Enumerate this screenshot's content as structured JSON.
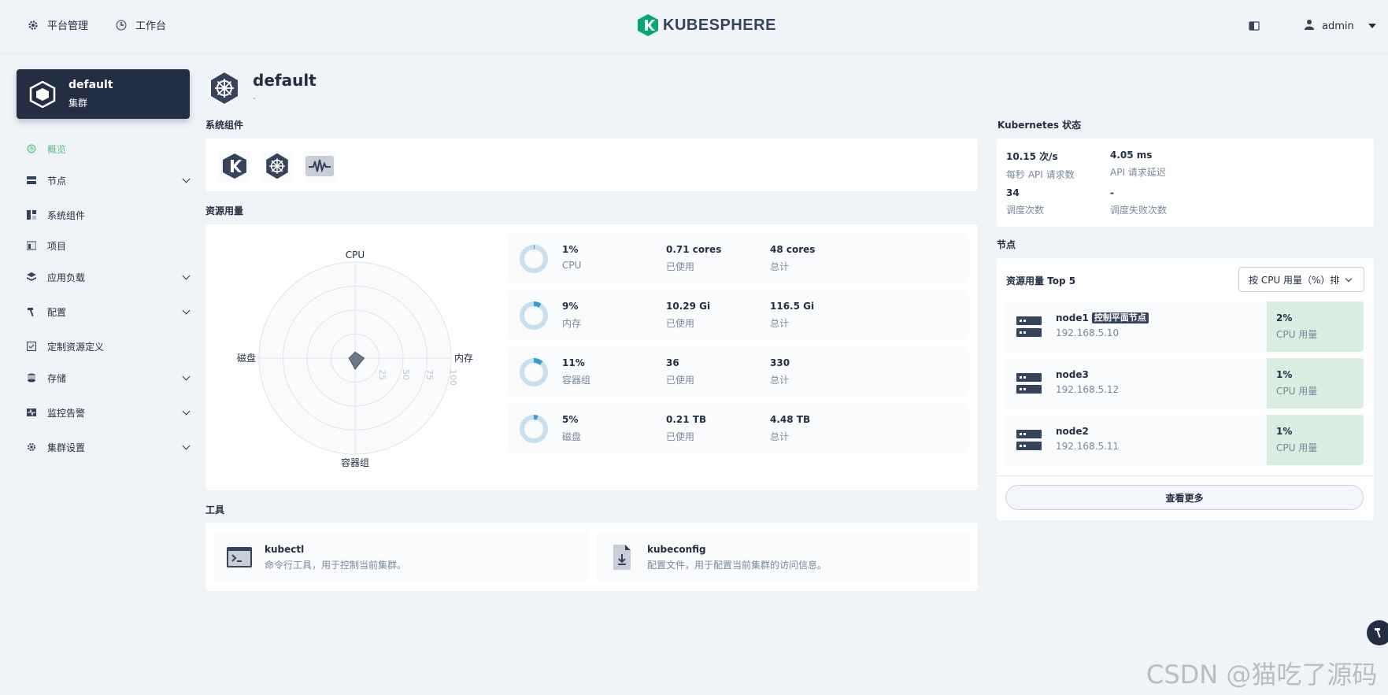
{
  "topbar": {
    "platform_label": "平台管理",
    "workbench_label": "工作台",
    "logo_text": "KUBESPHERE",
    "username": "admin"
  },
  "cluster": {
    "name": "default",
    "type": "集群"
  },
  "nav": {
    "items": [
      {
        "label": "概览",
        "icon": "overview-icon",
        "active": true,
        "expandable": false
      },
      {
        "label": "节点",
        "icon": "nodes-icon",
        "expandable": true
      },
      {
        "label": "系统组件",
        "icon": "components-icon",
        "expandable": false
      },
      {
        "label": "项目",
        "icon": "project-icon",
        "expandable": false
      },
      {
        "label": "应用负载",
        "icon": "workload-icon",
        "expandable": true
      },
      {
        "label": "配置",
        "icon": "hammer-icon",
        "expandable": true
      },
      {
        "label": "定制资源定义",
        "icon": "crd-icon",
        "expandable": false
      },
      {
        "label": "存储",
        "icon": "storage-icon",
        "expandable": true
      },
      {
        "label": "监控告警",
        "icon": "monitoring-icon",
        "expandable": true
      },
      {
        "label": "集群设置",
        "icon": "gear-icon",
        "expandable": true
      }
    ]
  },
  "page": {
    "title": "default",
    "description": "-"
  },
  "sections": {
    "system_components": "系统组件",
    "resource_usage": "资源用量",
    "tools": "工具",
    "k8s_status": "Kubernetes 状态",
    "nodes": "节点"
  },
  "radar": {
    "axes": [
      "CPU",
      "内存",
      "容器组",
      "磁盘"
    ],
    "ticks": [
      "25",
      "50",
      "75",
      "100"
    ]
  },
  "resources": [
    {
      "percent": "1%",
      "name": "CPU",
      "used": "0.71 cores",
      "used_label": "已使用",
      "total": "48 cores",
      "total_label": "总计",
      "fraction": 0.01
    },
    {
      "percent": "9%",
      "name": "内存",
      "used": "10.29 Gi",
      "used_label": "已使用",
      "total": "116.5 Gi",
      "total_label": "总计",
      "fraction": 0.09
    },
    {
      "percent": "11%",
      "name": "容器组",
      "used": "36",
      "used_label": "已使用",
      "total": "330",
      "total_label": "总计",
      "fraction": 0.11
    },
    {
      "percent": "5%",
      "name": "磁盘",
      "used": "0.21 TB",
      "used_label": "已使用",
      "total": "4.48 TB",
      "total_label": "总计",
      "fraction": 0.05
    }
  ],
  "tools": [
    {
      "name": "kubectl",
      "desc": "命令行工具，用于控制当前集群。",
      "icon": "terminal-icon"
    },
    {
      "name": "kubeconfig",
      "desc": "配置文件，用于配置当前集群的访问信息。",
      "icon": "file-download-icon"
    }
  ],
  "k8s_status": [
    {
      "value": "10.15 次/s",
      "label": "每秒 API 请求数"
    },
    {
      "value": "4.05 ms",
      "label": "API 请求延迟"
    },
    {
      "value": "34",
      "label": "调度次数"
    },
    {
      "value": "-",
      "label": "调度失败次数"
    }
  ],
  "nodes": {
    "title": "资源用量 Top 5",
    "sort_label": "按 CPU 用量（%）排",
    "items": [
      {
        "name": "node1",
        "badge": "控制平面节点",
        "ip": "192.168.5.10",
        "usage": "2%",
        "usage_label": "CPU 用量"
      },
      {
        "name": "node3",
        "badge": "",
        "ip": "192.168.5.12",
        "usage": "1%",
        "usage_label": "CPU 用量"
      },
      {
        "name": "node2",
        "badge": "",
        "ip": "192.168.5.11",
        "usage": "1%",
        "usage_label": "CPU 用量"
      }
    ],
    "more_label": "查看更多"
  },
  "watermark": "CSDN @猫吃了源码",
  "colors": {
    "accent": "#55bc8a",
    "dark": "#242e42",
    "donut": "#329dce",
    "donut_track": "#c7deef"
  }
}
